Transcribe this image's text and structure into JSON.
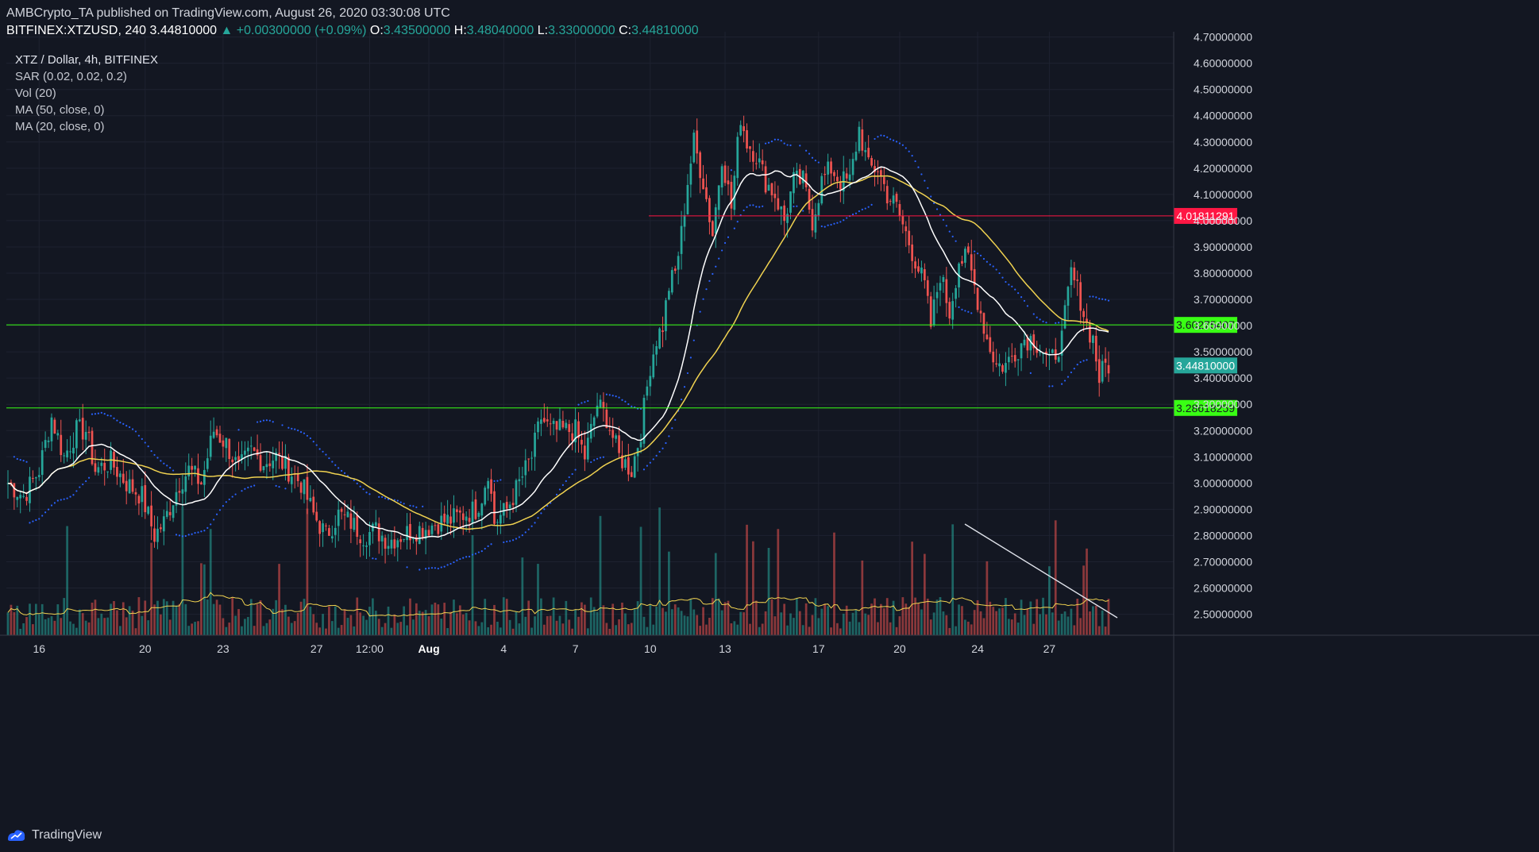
{
  "header": {
    "publish_line": "AMBCrypto_TA published on TradingView.com, August 26, 2020 03:30:08 UTC",
    "symbol": "BITFINEX:XTZUSD, 240",
    "last": "3.44810000",
    "change": "▲ +0.00300000 (+0.09%)",
    "o_label": "O:",
    "o": "3.43500000",
    "h_label": "H:",
    "h": "3.48040000",
    "l_label": "L:",
    "l": "3.33000000",
    "c_label": "C:",
    "c": "3.44810000"
  },
  "indicators": {
    "title": "XTZ / Dollar, 4h, BITFINEX",
    "sar": "SAR (0.02, 0.02, 0.2)",
    "vol": "Vol (20)",
    "ma50": "MA (50, close, 0)",
    "ma20": "MA (20, close, 0)"
  },
  "footer": {
    "brand": "TradingView"
  },
  "colors": {
    "background": "#131722",
    "up": "#26a69a",
    "down": "#ef5350",
    "ma20": "#ffffff",
    "ma50": "#f0d250",
    "sar": "#2962ff",
    "support": "#39ff14",
    "resistance": "#ff1744"
  },
  "chart_data": {
    "type": "candlestick",
    "ylim": [
      2.42,
      4.72
    ],
    "y_ticks": [
      "4.70000000",
      "4.60000000",
      "4.50000000",
      "4.40000000",
      "4.30000000",
      "4.20000000",
      "4.10000000",
      "4.00000000",
      "3.90000000",
      "3.80000000",
      "3.70000000",
      "3.60000000",
      "3.50000000",
      "3.40000000",
      "3.30000000",
      "3.20000000",
      "3.10000000",
      "3.00000000",
      "2.90000000",
      "2.80000000",
      "2.70000000",
      "2.60000000",
      "2.50000000"
    ],
    "x_ticks": [
      "16",
      "20",
      "23",
      "27",
      "12:00",
      "Aug",
      "4",
      "7",
      "10",
      "13",
      "17",
      "20",
      "24",
      "27"
    ],
    "horizontal_levels": [
      {
        "label": "4.01811291",
        "value": 4.01811291,
        "color": "#ff1744"
      },
      {
        "label": "3.60275407",
        "value": 3.60275407,
        "color": "#39ff14"
      },
      {
        "label": "3.28618259",
        "value": 3.28618259,
        "color": "#39ff14"
      }
    ],
    "last_price_label": "3.44810000",
    "price_anchors": [
      [
        0,
        3.0
      ],
      [
        5,
        2.95
      ],
      [
        10,
        3.05
      ],
      [
        14,
        3.25
      ],
      [
        18,
        3.1
      ],
      [
        22,
        3.2
      ],
      [
        25,
        3.2
      ],
      [
        28,
        3.05
      ],
      [
        33,
        3.08
      ],
      [
        38,
        3.0
      ],
      [
        43,
        2.95
      ],
      [
        47,
        2.8
      ],
      [
        50,
        2.85
      ],
      [
        55,
        3.0
      ],
      [
        58,
        3.05
      ],
      [
        62,
        3.0
      ],
      [
        66,
        3.2
      ],
      [
        70,
        3.15
      ],
      [
        74,
        3.05
      ],
      [
        78,
        3.12
      ],
      [
        82,
        3.08
      ],
      [
        86,
        3.1
      ],
      [
        90,
        3.05
      ],
      [
        94,
        3.0
      ],
      [
        98,
        2.88
      ],
      [
        102,
        2.8
      ],
      [
        106,
        2.88
      ],
      [
        110,
        2.85
      ],
      [
        114,
        2.8
      ],
      [
        118,
        2.82
      ],
      [
        122,
        2.78
      ],
      [
        126,
        2.8
      ],
      [
        130,
        2.82
      ],
      [
        134,
        2.83
      ],
      [
        138,
        2.85
      ],
      [
        142,
        2.86
      ],
      [
        146,
        2.88
      ],
      [
        150,
        2.9
      ],
      [
        152,
        2.95
      ],
      [
        154,
        3.05
      ],
      [
        156,
        2.85
      ],
      [
        160,
        2.9
      ],
      [
        164,
        3.0
      ],
      [
        168,
        3.1
      ],
      [
        171,
        3.25
      ],
      [
        174,
        3.2
      ],
      [
        178,
        3.2
      ],
      [
        182,
        3.2
      ],
      [
        185,
        3.1
      ],
      [
        189,
        3.3
      ],
      [
        192,
        3.25
      ],
      [
        196,
        3.1
      ],
      [
        200,
        3.05
      ],
      [
        203,
        3.2
      ],
      [
        206,
        3.45
      ],
      [
        208,
        3.55
      ],
      [
        210,
        3.6
      ],
      [
        212,
        3.75
      ],
      [
        214,
        3.8
      ],
      [
        216,
        3.95
      ],
      [
        218,
        4.15
      ],
      [
        220,
        4.3
      ],
      [
        223,
        4.15
      ],
      [
        226,
        3.95
      ],
      [
        229,
        4.25
      ],
      [
        232,
        4.05
      ],
      [
        235,
        4.4
      ],
      [
        237,
        4.3
      ],
      [
        240,
        4.25
      ],
      [
        243,
        4.15
      ],
      [
        246,
        4.1
      ],
      [
        249,
        4.0
      ],
      [
        252,
        4.15
      ],
      [
        255,
        4.15
      ],
      [
        258,
        4.0
      ],
      [
        261,
        4.15
      ],
      [
        264,
        4.2
      ],
      [
        267,
        4.15
      ],
      [
        270,
        4.15
      ],
      [
        273,
        4.35
      ],
      [
        276,
        4.2
      ],
      [
        279,
        4.2
      ],
      [
        282,
        4.1
      ],
      [
        285,
        4.05
      ],
      [
        288,
        3.95
      ],
      [
        291,
        3.85
      ],
      [
        294,
        3.75
      ],
      [
        296,
        3.6
      ],
      [
        299,
        3.8
      ],
      [
        302,
        3.65
      ],
      [
        305,
        3.85
      ],
      [
        308,
        3.85
      ],
      [
        311,
        3.7
      ],
      [
        314,
        3.55
      ],
      [
        317,
        3.45
      ],
      [
        320,
        3.45
      ],
      [
        323,
        3.5
      ],
      [
        326,
        3.55
      ],
      [
        329,
        3.55
      ],
      [
        332,
        3.5
      ],
      [
        334,
        3.45
      ],
      [
        338,
        3.55
      ],
      [
        341,
        3.8
      ],
      [
        344,
        3.7
      ],
      [
        346,
        3.6
      ],
      [
        348,
        3.55
      ],
      [
        350,
        3.4
      ],
      [
        352,
        3.45
      ],
      [
        353,
        3.45
      ]
    ]
  }
}
